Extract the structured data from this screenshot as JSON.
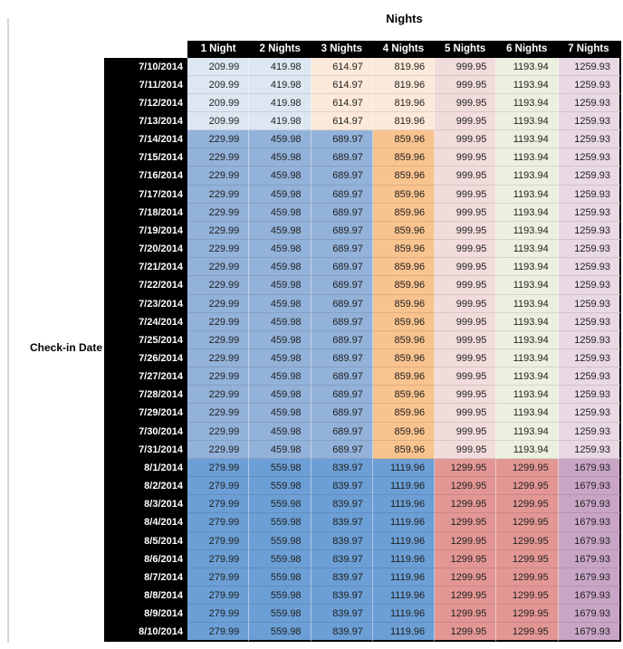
{
  "chart_data": {
    "type": "table",
    "title": "Nights",
    "row_axis_label": "Check-in Date",
    "columns": [
      "1 Night",
      "2 Nights",
      "3 Nights",
      "4 Nights",
      "5 Nights",
      "6 Nights",
      "7 Nights"
    ],
    "rows": [
      {
        "date": "7/10/2014",
        "band": "early_july",
        "values": [
          "209.99",
          "419.98",
          "614.97",
          "819.96",
          "999.95",
          "1193.94",
          "1259.93"
        ]
      },
      {
        "date": "7/11/2014",
        "band": "early_july",
        "values": [
          "209.99",
          "419.98",
          "614.97",
          "819.96",
          "999.95",
          "1193.94",
          "1259.93"
        ]
      },
      {
        "date": "7/12/2014",
        "band": "early_july",
        "values": [
          "209.99",
          "419.98",
          "614.97",
          "819.96",
          "999.95",
          "1193.94",
          "1259.93"
        ]
      },
      {
        "date": "7/13/2014",
        "band": "early_july",
        "values": [
          "209.99",
          "419.98",
          "614.97",
          "819.96",
          "999.95",
          "1193.94",
          "1259.93"
        ]
      },
      {
        "date": "7/14/2014",
        "band": "mid_july",
        "values": [
          "229.99",
          "459.98",
          "689.97",
          "859.96",
          "999.95",
          "1193.94",
          "1259.93"
        ]
      },
      {
        "date": "7/15/2014",
        "band": "mid_july",
        "values": [
          "229.99",
          "459.98",
          "689.97",
          "859.96",
          "999.95",
          "1193.94",
          "1259.93"
        ]
      },
      {
        "date": "7/16/2014",
        "band": "mid_july",
        "values": [
          "229.99",
          "459.98",
          "689.97",
          "859.96",
          "999.95",
          "1193.94",
          "1259.93"
        ]
      },
      {
        "date": "7/17/2014",
        "band": "mid_july",
        "values": [
          "229.99",
          "459.98",
          "689.97",
          "859.96",
          "999.95",
          "1193.94",
          "1259.93"
        ]
      },
      {
        "date": "7/18/2014",
        "band": "mid_july",
        "values": [
          "229.99",
          "459.98",
          "689.97",
          "859.96",
          "999.95",
          "1193.94",
          "1259.93"
        ]
      },
      {
        "date": "7/19/2014",
        "band": "mid_july",
        "values": [
          "229.99",
          "459.98",
          "689.97",
          "859.96",
          "999.95",
          "1193.94",
          "1259.93"
        ]
      },
      {
        "date": "7/20/2014",
        "band": "mid_july",
        "values": [
          "229.99",
          "459.98",
          "689.97",
          "859.96",
          "999.95",
          "1193.94",
          "1259.93"
        ]
      },
      {
        "date": "7/21/2014",
        "band": "mid_july",
        "values": [
          "229.99",
          "459.98",
          "689.97",
          "859.96",
          "999.95",
          "1193.94",
          "1259.93"
        ]
      },
      {
        "date": "7/22/2014",
        "band": "mid_july",
        "values": [
          "229.99",
          "459.98",
          "689.97",
          "859.96",
          "999.95",
          "1193.94",
          "1259.93"
        ]
      },
      {
        "date": "7/23/2014",
        "band": "mid_july",
        "values": [
          "229.99",
          "459.98",
          "689.97",
          "859.96",
          "999.95",
          "1193.94",
          "1259.93"
        ]
      },
      {
        "date": "7/24/2014",
        "band": "mid_july",
        "values": [
          "229.99",
          "459.98",
          "689.97",
          "859.96",
          "999.95",
          "1193.94",
          "1259.93"
        ]
      },
      {
        "date": "7/25/2014",
        "band": "mid_july",
        "values": [
          "229.99",
          "459.98",
          "689.97",
          "859.96",
          "999.95",
          "1193.94",
          "1259.93"
        ]
      },
      {
        "date": "7/26/2014",
        "band": "mid_july",
        "values": [
          "229.99",
          "459.98",
          "689.97",
          "859.96",
          "999.95",
          "1193.94",
          "1259.93"
        ]
      },
      {
        "date": "7/27/2014",
        "band": "mid_july",
        "values": [
          "229.99",
          "459.98",
          "689.97",
          "859.96",
          "999.95",
          "1193.94",
          "1259.93"
        ]
      },
      {
        "date": "7/28/2014",
        "band": "mid_july",
        "values": [
          "229.99",
          "459.98",
          "689.97",
          "859.96",
          "999.95",
          "1193.94",
          "1259.93"
        ]
      },
      {
        "date": "7/29/2014",
        "band": "mid_july",
        "values": [
          "229.99",
          "459.98",
          "689.97",
          "859.96",
          "999.95",
          "1193.94",
          "1259.93"
        ]
      },
      {
        "date": "7/30/2014",
        "band": "mid_july",
        "values": [
          "229.99",
          "459.98",
          "689.97",
          "859.96",
          "999.95",
          "1193.94",
          "1259.93"
        ]
      },
      {
        "date": "7/31/2014",
        "band": "mid_july",
        "values": [
          "229.99",
          "459.98",
          "689.97",
          "859.96",
          "999.95",
          "1193.94",
          "1259.93"
        ]
      },
      {
        "date": "8/1/2014",
        "band": "august",
        "values": [
          "279.99",
          "559.98",
          "839.97",
          "1119.96",
          "1299.95",
          "1299.95",
          "1679.93"
        ]
      },
      {
        "date": "8/2/2014",
        "band": "august",
        "values": [
          "279.99",
          "559.98",
          "839.97",
          "1119.96",
          "1299.95",
          "1299.95",
          "1679.93"
        ]
      },
      {
        "date": "8/3/2014",
        "band": "august",
        "values": [
          "279.99",
          "559.98",
          "839.97",
          "1119.96",
          "1299.95",
          "1299.95",
          "1679.93"
        ]
      },
      {
        "date": "8/4/2014",
        "band": "august",
        "values": [
          "279.99",
          "559.98",
          "839.97",
          "1119.96",
          "1299.95",
          "1299.95",
          "1679.93"
        ]
      },
      {
        "date": "8/5/2014",
        "band": "august",
        "values": [
          "279.99",
          "559.98",
          "839.97",
          "1119.96",
          "1299.95",
          "1299.95",
          "1679.93"
        ]
      },
      {
        "date": "8/6/2014",
        "band": "august",
        "values": [
          "279.99",
          "559.98",
          "839.97",
          "1119.96",
          "1299.95",
          "1299.95",
          "1679.93"
        ]
      },
      {
        "date": "8/7/2014",
        "band": "august",
        "values": [
          "279.99",
          "559.98",
          "839.97",
          "1119.96",
          "1299.95",
          "1299.95",
          "1679.93"
        ]
      },
      {
        "date": "8/8/2014",
        "band": "august",
        "values": [
          "279.99",
          "559.98",
          "839.97",
          "1119.96",
          "1299.95",
          "1299.95",
          "1679.93"
        ]
      },
      {
        "date": "8/9/2014",
        "band": "august",
        "values": [
          "279.99",
          "559.98",
          "839.97",
          "1119.96",
          "1299.95",
          "1299.95",
          "1679.93"
        ]
      },
      {
        "date": "8/10/2014",
        "band": "august",
        "values": [
          "279.99",
          "559.98",
          "839.97",
          "1119.96",
          "1299.95",
          "1299.95",
          "1679.93"
        ]
      }
    ]
  },
  "styles": {
    "header_bg": "#000000",
    "header_text": "#FFFFFF",
    "date_bg": "#000000",
    "date_text": "#FFFFFF",
    "cell_text": "#1F1F1F",
    "outline": "#000000",
    "left_rule": "#D6D6D6",
    "band_colors": {
      "early_july": [
        "#DDE7F2",
        "#DDE7F2",
        "#FDE9D9",
        "#FDE9D9",
        "#F2DCDB",
        "#EBF1DE",
        "#E9D9E4"
      ],
      "mid_july": [
        "#93B2DA",
        "#93B2DA",
        "#93B2DA",
        "#F9C38F",
        "#F2DCDB",
        "#EBF1DE",
        "#E9D9E4"
      ],
      "august": [
        "#6C9FD5",
        "#6C9FD5",
        "#6C9FD5",
        "#6C9FD5",
        "#E29794",
        "#E29794",
        "#C9A5C5"
      ]
    }
  }
}
